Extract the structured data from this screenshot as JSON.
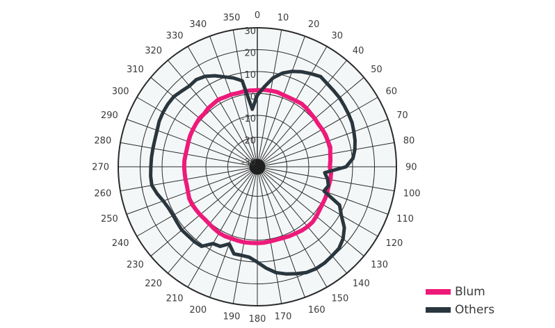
{
  "chart_data": {
    "type": "polar-line",
    "angle_labels": [
      "0",
      "10",
      "20",
      "30",
      "40",
      "50",
      "60",
      "70",
      "80",
      "90",
      "100",
      "110",
      "120",
      "130",
      "140",
      "150",
      "160",
      "170",
      "180",
      "190",
      "200",
      "210",
      "220",
      "230",
      "240",
      "250",
      "260",
      "270",
      "280",
      "290",
      "300",
      "310",
      "320",
      "330",
      "340",
      "350"
    ],
    "radial_ticks": [
      -30,
      -20,
      -10,
      0,
      10,
      20,
      30
    ],
    "radial_tick_labels": [
      "-30",
      "-20",
      "-10",
      "0",
      "10",
      "20",
      "30"
    ],
    "rlim": [
      -30,
      30
    ],
    "angle_step": 5,
    "series": [
      {
        "name": "Blum",
        "color": "#ee1a7a",
        "values": [
          1.5,
          1.8,
          1.8,
          1.8,
          1.4,
          1.3,
          1.4,
          1.7,
          1.4,
          1.0,
          0.8,
          0.5,
          0.7,
          0.9,
          0.8,
          1.0,
          0.3,
          0.0,
          -0.4,
          0.3,
          0.4,
          0.2,
          0.5,
          0.7,
          0.8,
          1.1,
          1.7,
          2.2,
          2.2,
          2.0,
          1.6,
          1.4,
          1.1,
          1.0,
          1.1,
          1.3,
          1.4,
          1.4,
          1.5,
          1.4,
          1.3,
          1.5,
          1.4,
          1.0,
          0.6,
          0.4,
          0.6,
          0.7,
          0.9,
          0.8,
          0.2,
          -0.2,
          -0.2,
          -0.2,
          -0.1,
          -0.1,
          -0.3,
          -0.3,
          0.0,
          0.3,
          0.5,
          0.7,
          1.0,
          0.8,
          1.4,
          1.6,
          2.0,
          1.6,
          1.6,
          1.3,
          1.5,
          1.5
        ]
      },
      {
        "name": "Others",
        "color": "#2a363d",
        "values": [
          -0.8,
          3.2,
          7.7,
          10.8,
          12.9,
          14.4,
          15.6,
          16.8,
          16.1,
          15.7,
          15.5,
          15.0,
          14.6,
          14.2,
          13.4,
          12.7,
          11.7,
          10.3,
          7.0,
          -2.6,
          -0.9,
          0.1,
          -1.1,
          7.9,
          10.8,
          15.0,
          17.6,
          19.2,
          19.6,
          20.1,
          20.2,
          19.8,
          18.5,
          17.2,
          15.6,
          13.0,
          10.1,
          8.0,
          7.6,
          7.7,
          4.0,
          6.6,
          7.0,
          10.9,
          11.2,
          11.2,
          11.5,
          11.1,
          10.9,
          11.2,
          12.2,
          13.9,
          15.4,
          15.4,
          15.1,
          15.0,
          14.9,
          14.9,
          15.2,
          15.9,
          16.2,
          16.4,
          16.3,
          15.4,
          14.7,
          15.1,
          14.2,
          12.4,
          10.2,
          8.5,
          6.4,
          -7.1
        ]
      }
    ],
    "legend_position": "bottom-right",
    "grid": true
  },
  "legend": [
    {
      "label": "Blum",
      "color": "#ee1a7a"
    },
    {
      "label": "Others",
      "color": "#2a363d"
    }
  ]
}
